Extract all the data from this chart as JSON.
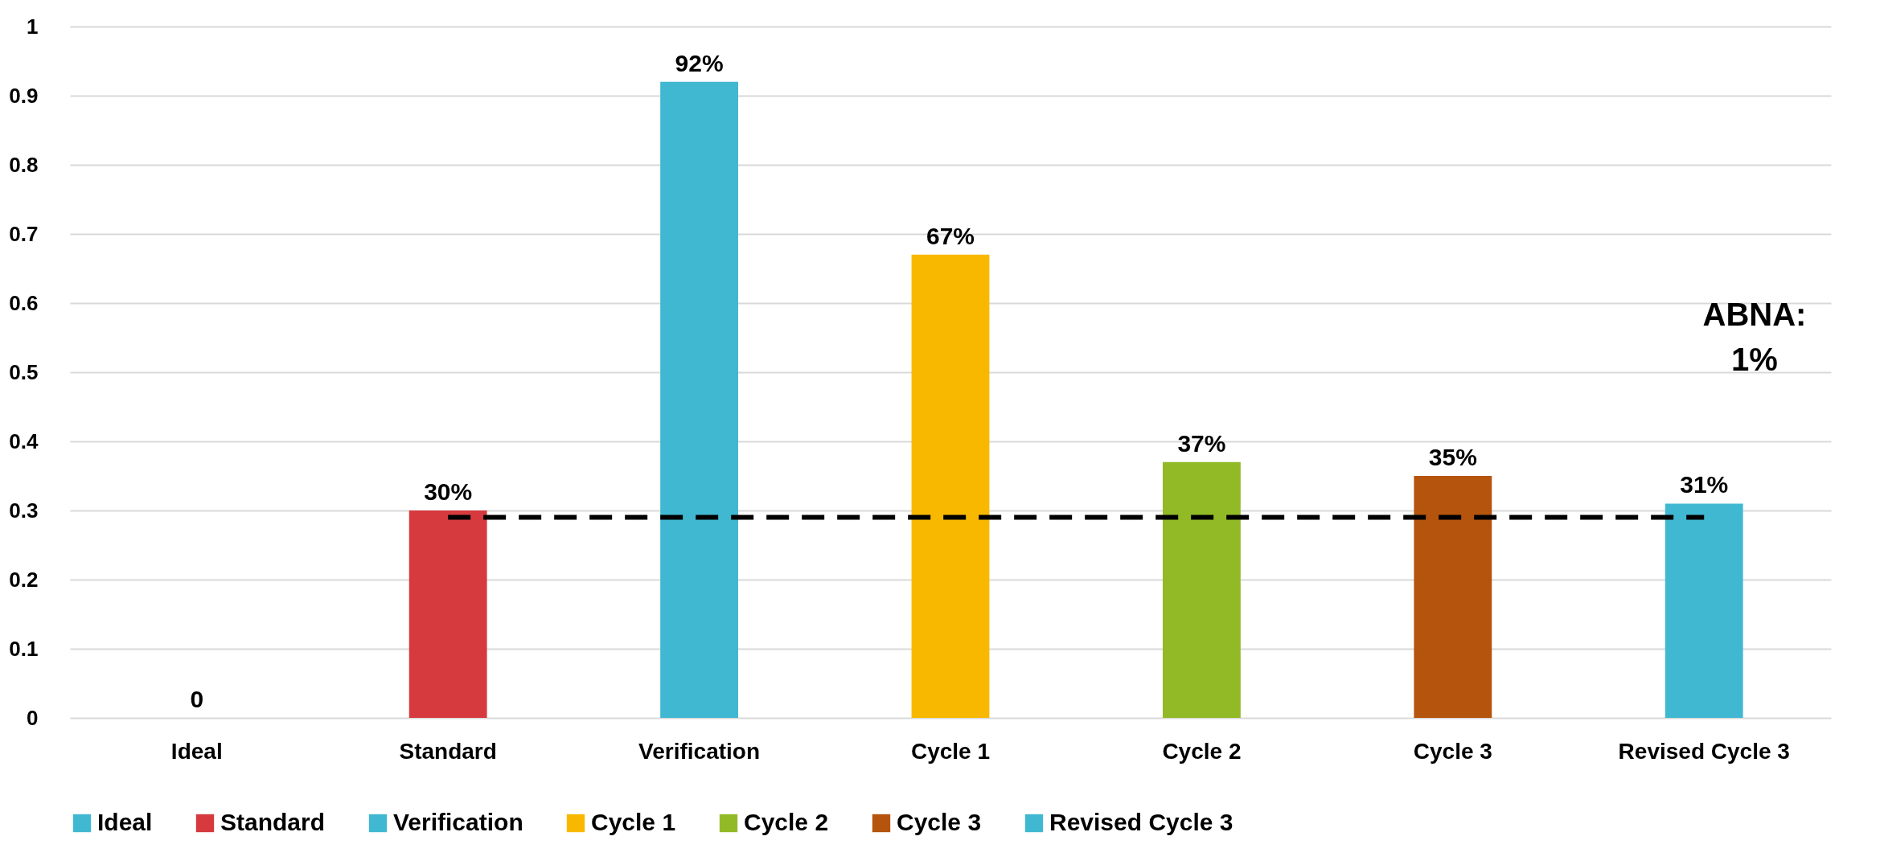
{
  "chart_data": {
    "type": "bar",
    "categories": [
      "Ideal",
      "Standard",
      "Verification",
      "Cycle 1",
      "Cycle 2",
      "Cycle 3",
      "Revised Cycle 3"
    ],
    "series": [
      {
        "name": "Ideal",
        "color": "#41b8d2",
        "values": [
          0,
          null,
          null,
          null,
          null,
          null,
          null
        ],
        "value_labels": [
          "0",
          null,
          null,
          null,
          null,
          null,
          null
        ]
      },
      {
        "name": "Standard",
        "color": "#d63a3e",
        "values": [
          null,
          0.3,
          null,
          null,
          null,
          null,
          null
        ],
        "value_labels": [
          null,
          "30%",
          null,
          null,
          null,
          null,
          null
        ]
      },
      {
        "name": "Verification",
        "color": "#41b8d2",
        "values": [
          null,
          null,
          0.92,
          null,
          null,
          null,
          null
        ],
        "value_labels": [
          null,
          null,
          "92%",
          null,
          null,
          null,
          null
        ]
      },
      {
        "name": "Cycle 1",
        "color": "#f9b800",
        "values": [
          null,
          null,
          null,
          0.67,
          null,
          null,
          null
        ],
        "value_labels": [
          null,
          null,
          null,
          "67%",
          null,
          null,
          null
        ]
      },
      {
        "name": "Cycle 2",
        "color": "#92ba26",
        "values": [
          null,
          null,
          null,
          null,
          0.37,
          null,
          null
        ],
        "value_labels": [
          null,
          null,
          null,
          null,
          "37%",
          null,
          null
        ]
      },
      {
        "name": "Cycle 3",
        "color": "#b5540c",
        "values": [
          null,
          null,
          null,
          null,
          null,
          0.35,
          null
        ],
        "value_labels": [
          null,
          null,
          null,
          null,
          null,
          "35%",
          null
        ]
      },
      {
        "name": "Revised Cycle 3",
        "color": "#41b8d2",
        "values": [
          null,
          null,
          null,
          null,
          null,
          null,
          0.31
        ],
        "value_labels": [
          null,
          null,
          null,
          null,
          null,
          null,
          "31%"
        ]
      },
      {
        "type": "line",
        "color": "#000000",
        "line_style": "dashed",
        "values": [
          null,
          0.29,
          0.29,
          0.29,
          0.29,
          0.29,
          0.29
        ]
      }
    ],
    "ylim": [
      0,
      1
    ],
    "yticks": [
      0,
      0.1,
      0.2,
      0.3,
      0.4,
      0.5,
      0.6,
      0.7,
      0.8,
      0.9,
      1
    ],
    "grid": "y",
    "legend": "bottom",
    "annotations": [
      "ABNA:\n1%"
    ]
  }
}
